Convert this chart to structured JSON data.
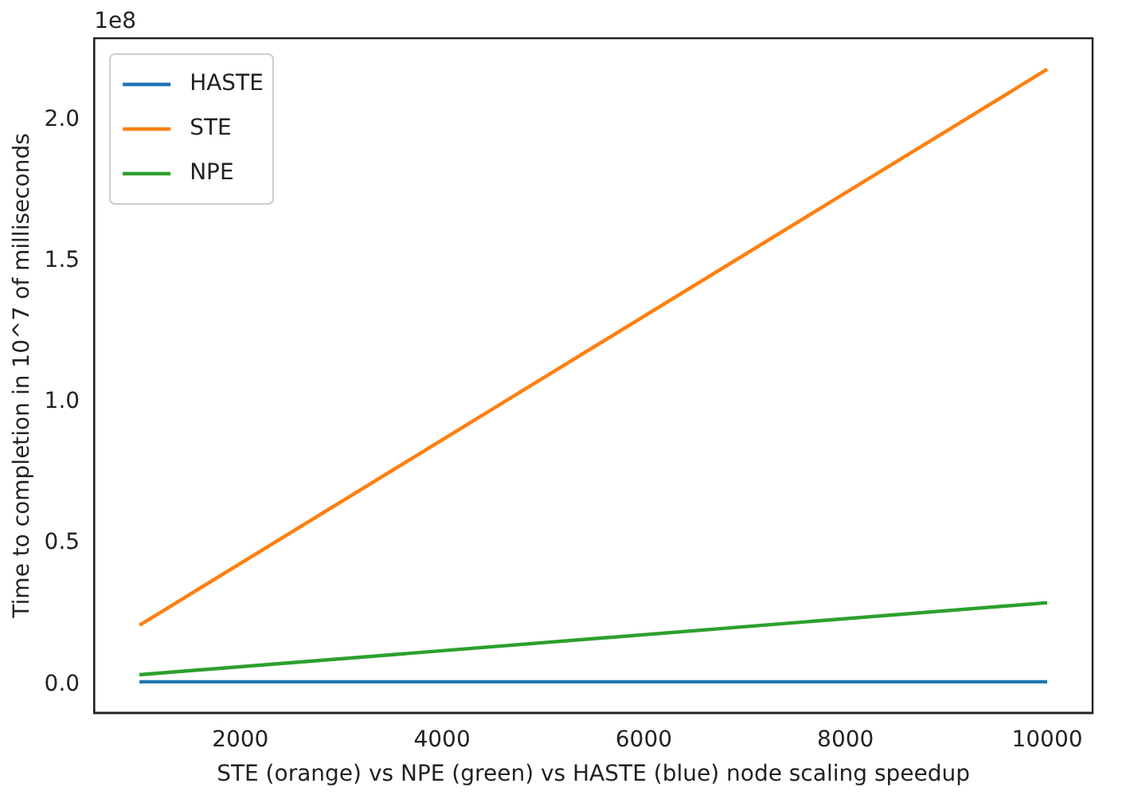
{
  "chart_data": {
    "type": "line",
    "xlabel": "STE (orange) vs NPE (green) vs HASTE (blue) node scaling speedup",
    "ylabel": "Time to completion in 10^7 of milliseconds",
    "annotations": [
      "1e8"
    ],
    "x": [
      1000,
      10000
    ],
    "xlim": [
      550,
      10450
    ],
    "xticks": [
      2000,
      4000,
      6000,
      8000,
      10000
    ],
    "ylim": [
      -0.1,
      2.29
    ],
    "yticks": [
      {
        "value": 0,
        "label": "0.0"
      },
      {
        "value": 0.5,
        "label": "0.5"
      },
      {
        "value": 1,
        "label": "1.0"
      },
      {
        "value": 1.5,
        "label": "1.5"
      },
      {
        "value": 2,
        "label": "2.0"
      }
    ],
    "series": [
      {
        "name": "HASTE",
        "color": "#1f77b4",
        "values": [
          0.01,
          0.01
        ]
      },
      {
        "name": "STE",
        "color": "#ff7f0e",
        "values": [
          0.21,
          2.18
        ]
      },
      {
        "name": "NPE",
        "color": "#2ca02c",
        "values": [
          0.035,
          0.29
        ]
      }
    ],
    "legend": "top left",
    "grid": false
  }
}
